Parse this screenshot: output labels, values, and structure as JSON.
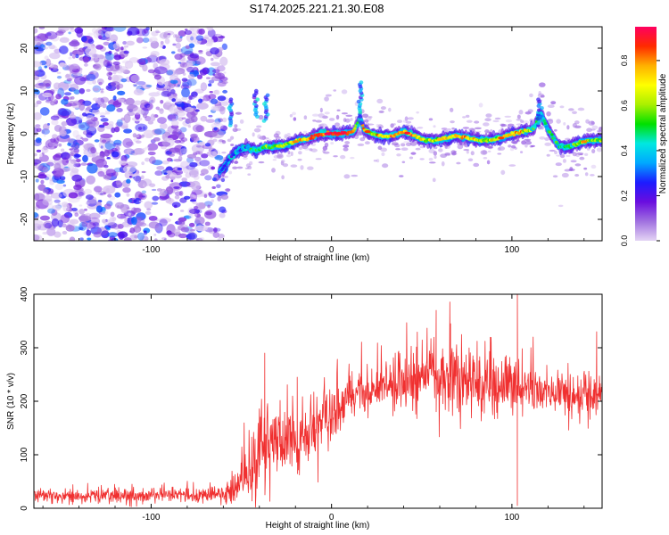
{
  "title": "S174.2025.221.21.30.E08",
  "chart_data": [
    {
      "type": "heatmap",
      "name": "spectrogram",
      "xlabel": "Height of straight line (km)",
      "ylabel": "Frequency (Hz)",
      "xlim": [
        -165,
        150
      ],
      "ylim": [
        -25,
        25
      ],
      "xticks": [
        -100,
        0,
        100
      ],
      "xtick_labels": [
        "-100",
        "0",
        "100"
      ],
      "yticks": [
        -20,
        -10,
        0,
        10,
        20
      ],
      "ytick_labels": [
        "-20",
        "-10",
        "0",
        "10",
        "20"
      ],
      "noise_region_x": [
        -165,
        -62
      ],
      "trace": {
        "x": [
          -62,
          -55,
          -48,
          -42,
          -36,
          -30,
          -24,
          -18,
          -12,
          -6,
          0,
          6,
          12,
          16,
          18,
          22,
          28,
          34,
          40,
          46,
          52,
          58,
          64,
          70,
          76,
          82,
          88,
          94,
          100,
          106,
          112,
          116,
          120,
          126,
          132,
          138,
          144,
          150
        ],
        "freq": [
          -9,
          -5,
          -3,
          -4,
          -3,
          -3,
          -2.5,
          -1.5,
          -1,
          0,
          0,
          0,
          0.5,
          3.5,
          1,
          0,
          -0.5,
          -0.5,
          0.5,
          -0.5,
          -1.5,
          -1.5,
          -1,
          -0.5,
          -1,
          -1.5,
          -1.5,
          -1,
          0,
          0.5,
          1,
          5,
          1,
          -3,
          -3,
          -2,
          -1.5,
          -1.5
        ],
        "amp": [
          0.25,
          0.3,
          0.35,
          0.45,
          0.5,
          0.55,
          0.6,
          0.7,
          0.8,
          0.9,
          0.95,
          0.85,
          0.8,
          0.45,
          0.75,
          0.6,
          0.65,
          0.75,
          0.8,
          0.7,
          0.6,
          0.65,
          0.7,
          0.75,
          0.7,
          0.6,
          0.6,
          0.7,
          0.8,
          0.7,
          0.5,
          0.4,
          0.5,
          0.45,
          0.5,
          0.6,
          0.6,
          0.55
        ]
      },
      "colorbar": {
        "label": "Normalized spectral amplitude",
        "ticks": [
          0.0,
          0.2,
          0.4,
          0.6,
          0.8
        ],
        "tick_labels": [
          "0.0",
          "0.2",
          "0.4",
          "0.6",
          "0.8"
        ],
        "range": [
          0,
          0.95
        ],
        "colors": [
          "#e4d4f4",
          "#a070e0",
          "#6a0ddf",
          "#1c1cff",
          "#00a8ff",
          "#00e8e0",
          "#00e000",
          "#aaf000",
          "#ffff00",
          "#ffb000",
          "#ff2a00",
          "#ff0060"
        ]
      }
    },
    {
      "type": "line",
      "name": "snr",
      "xlabel": "Height of straight line (km)",
      "ylabel": "SNR (10 * v/v)",
      "xlim": [
        -165,
        150
      ],
      "ylim": [
        0,
        400
      ],
      "xticks": [
        -100,
        0,
        100
      ],
      "xtick_labels": [
        "-100",
        "0",
        "100"
      ],
      "yticks": [
        0,
        100,
        200,
        300,
        400
      ],
      "ytick_labels": [
        "0",
        "100",
        "200",
        "300",
        "400"
      ],
      "color": "#f03030",
      "baseline": {
        "x": [
          -165,
          -60,
          -52,
          -45,
          -40,
          -30,
          -20,
          -10,
          0,
          10,
          20,
          30,
          40,
          50,
          60,
          70,
          80,
          90,
          100,
          110,
          120,
          130,
          140,
          150
        ],
        "y": [
          22,
          25,
          40,
          75,
          100,
          120,
          125,
          145,
          175,
          205,
          220,
          228,
          235,
          240,
          243,
          242,
          238,
          232,
          228,
          222,
          215,
          212,
          213,
          220
        ]
      },
      "noise_amp": {
        "x": [
          -165,
          -60,
          -52,
          -45,
          -40,
          -30,
          -20,
          -10,
          0,
          10,
          20,
          30,
          40,
          50,
          60,
          70,
          80,
          90,
          100,
          110,
          120,
          130,
          140,
          150
        ],
        "y": [
          12,
          14,
          35,
          60,
          70,
          65,
          55,
          50,
          45,
          40,
          40,
          45,
          55,
          65,
          70,
          70,
          60,
          55,
          50,
          45,
          40,
          40,
          40,
          40
        ]
      },
      "spikes": [
        {
          "x": -37,
          "y": 290
        },
        {
          "x": -19,
          "y": 245
        },
        {
          "x": 58,
          "y": 370
        },
        {
          "x": 66,
          "y": 345
        },
        {
          "x": 103,
          "y": 403
        },
        {
          "x": 103,
          "y": 5
        },
        {
          "x": 147,
          "y": 330
        }
      ]
    }
  ]
}
